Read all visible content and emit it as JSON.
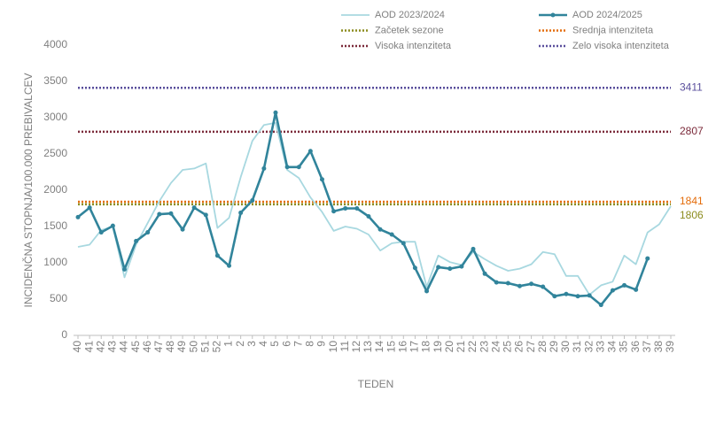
{
  "chart_data": {
    "type": "line",
    "y_label": "INCIDENČNA  STOPNJA/100.000  PREBIVALCEV",
    "x_label": "TEDEN",
    "categories": [
      "40",
      "41",
      "42",
      "43",
      "44",
      "45",
      "46",
      "47",
      "48",
      "49",
      "50",
      "51",
      "52",
      "1",
      "2",
      "3",
      "4",
      "5",
      "6",
      "7",
      "8",
      "9",
      "10",
      "11",
      "12",
      "13",
      "14",
      "15",
      "16",
      "17",
      "18",
      "19",
      "20",
      "21",
      "22",
      "23",
      "24",
      "25",
      "26",
      "27",
      "28",
      "29",
      "30",
      "31",
      "32",
      "33",
      "34",
      "35",
      "36",
      "37",
      "38",
      "39"
    ],
    "series": [
      {
        "name": "AOD 2023/2024",
        "color": "#a8d8e0",
        "markers": false,
        "values": [
          1220,
          1250,
          1450,
          1500,
          800,
          1250,
          1550,
          1850,
          2100,
          2280,
          2300,
          2370,
          1480,
          1620,
          2180,
          2680,
          2900,
          2930,
          2280,
          2170,
          1900,
          1700,
          1440,
          1500,
          1470,
          1390,
          1170,
          1270,
          1290,
          1290,
          670,
          1100,
          1010,
          970,
          1150,
          1050,
          960,
          890,
          920,
          980,
          1150,
          1120,
          820,
          820,
          560,
          690,
          740,
          1100,
          980,
          1420,
          1530,
          1780
        ]
      },
      {
        "name": "AOD 2024/2025",
        "color": "#31849b",
        "markers": true,
        "values": [
          1630,
          1760,
          1420,
          1510,
          910,
          1300,
          1420,
          1670,
          1680,
          1460,
          1760,
          1660,
          1100,
          960,
          1690,
          1860,
          2300,
          3070,
          2320,
          2320,
          2540,
          2150,
          1710,
          1750,
          1750,
          1640,
          1460,
          1390,
          1270,
          930,
          610,
          940,
          920,
          950,
          1190,
          850,
          730,
          720,
          680,
          710,
          670,
          540,
          570,
          540,
          550,
          420,
          620,
          690,
          630,
          1060,
          null,
          null
        ]
      }
    ],
    "reference_lines": [
      {
        "name": "Začetek sezone",
        "value": 1806,
        "color": "#8c8c1e"
      },
      {
        "name": "Srednja intenziteta",
        "value": 1841,
        "color": "#e46c0a"
      },
      {
        "name": "Visoka intenziteta",
        "value": 2807,
        "color": "#7b2a3a"
      },
      {
        "name": "Zelo visoka intenziteta",
        "value": 3411,
        "color": "#5a4f9c"
      }
    ],
    "ylim": [
      0,
      4000
    ],
    "yticks": [
      0,
      500,
      1000,
      1500,
      2000,
      2500,
      3000,
      3500,
      4000
    ],
    "grid": false
  }
}
